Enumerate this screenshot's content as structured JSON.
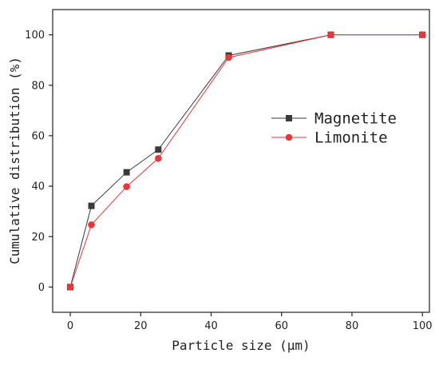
{
  "chart_data": {
    "type": "line",
    "xlabel": "Particle size (μm)",
    "ylabel": "Cumulative distribution (%)",
    "xlim": [
      -5,
      102
    ],
    "ylim": [
      -10,
      110
    ],
    "xticks": [
      0,
      20,
      40,
      60,
      80,
      100
    ],
    "yticks": [
      0,
      20,
      40,
      60,
      80,
      100
    ],
    "grid": false,
    "legend_position": "center-right",
    "series": [
      {
        "name": "Magnetite",
        "marker": "square",
        "color": "#3a3a3a",
        "x": [
          0,
          6,
          16,
          25,
          45,
          74,
          100
        ],
        "y": [
          0,
          32.2,
          45.5,
          54.5,
          91.8,
          100,
          100
        ]
      },
      {
        "name": "Limonite",
        "marker": "circle",
        "color": "#e8363b",
        "x": [
          0,
          6,
          16,
          25,
          45,
          74,
          100
        ],
        "y": [
          0,
          24.7,
          39.8,
          51,
          91,
          100,
          100
        ]
      }
    ]
  }
}
